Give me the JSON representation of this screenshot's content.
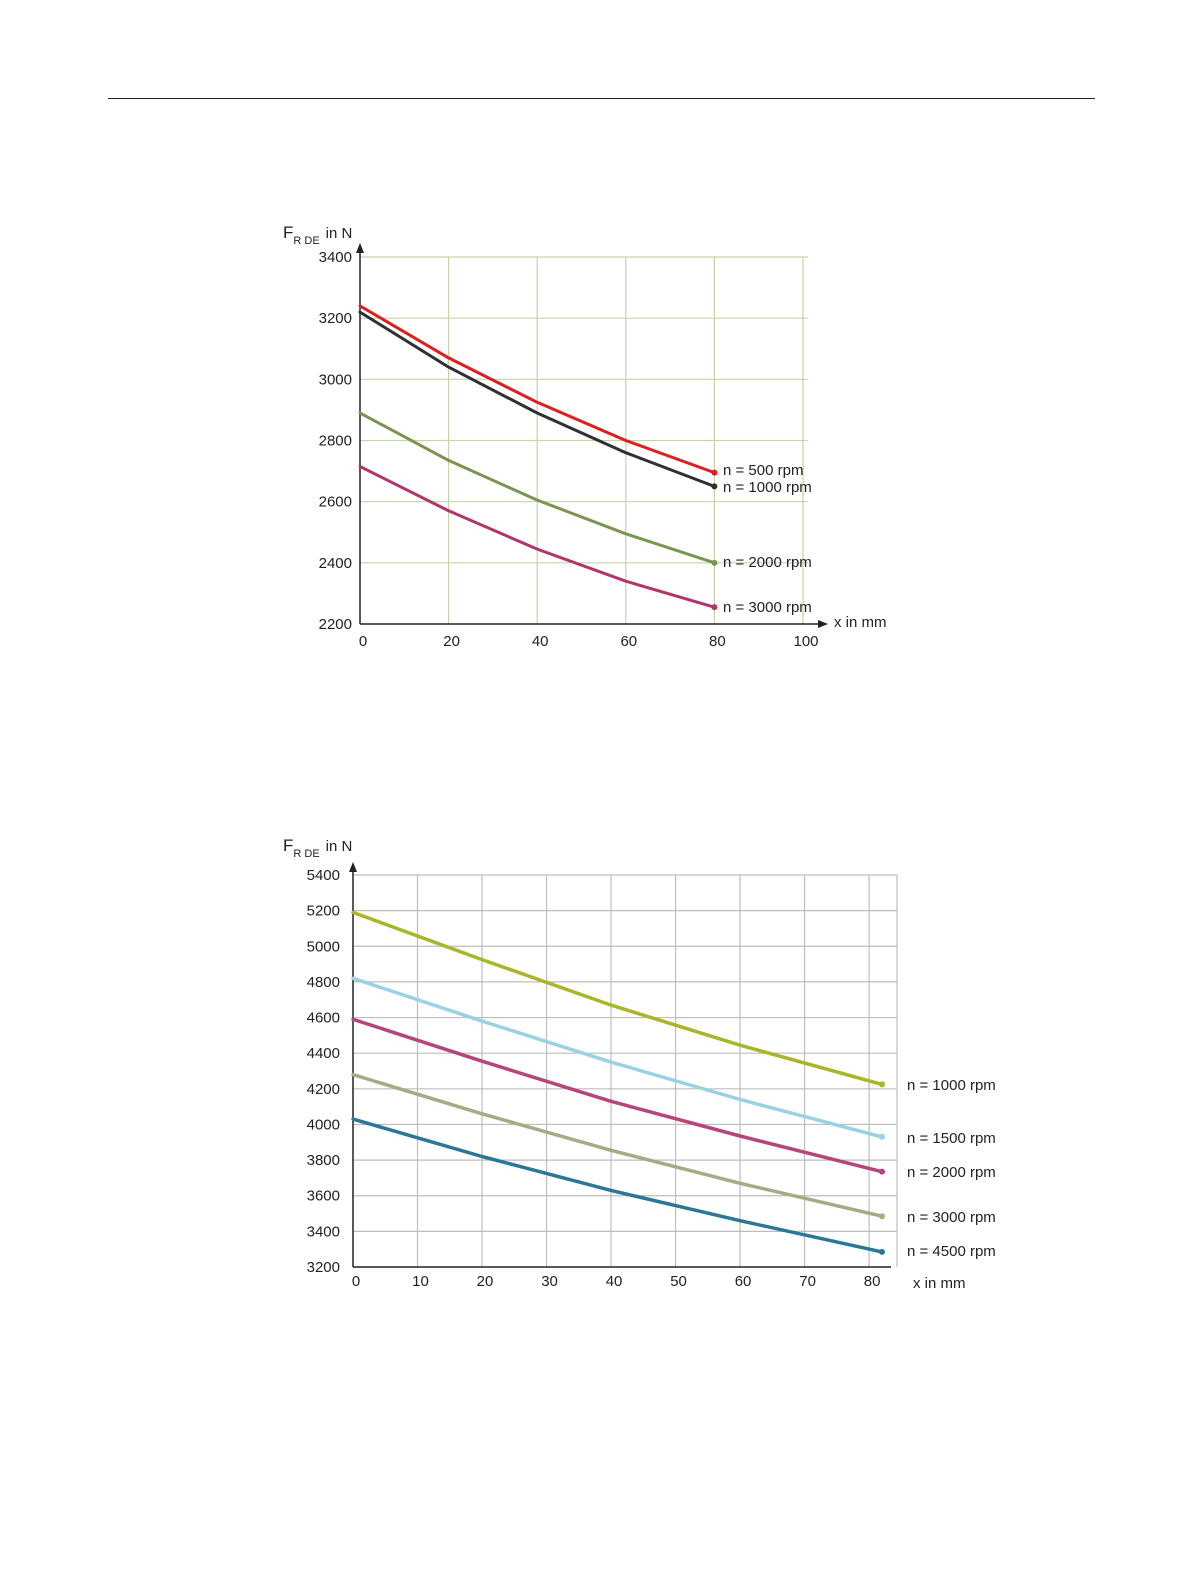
{
  "chart_data": [
    {
      "type": "line",
      "ylabel_main": "F",
      "ylabel_sub": "R DE",
      "ylabel_suffix": "in N",
      "xlabel": "x in mm",
      "xlim": [
        0,
        100
      ],
      "ylim": [
        2200,
        3400
      ],
      "xticks": [
        0,
        20,
        40,
        60,
        80,
        100
      ],
      "yticks": [
        2200,
        2400,
        2600,
        2800,
        3000,
        3200,
        3400
      ],
      "grid": true,
      "grid_color": "#c7d3a8",
      "legend_placement": "right of line ends",
      "series": [
        {
          "name": "n = 500 rpm",
          "color": "#e01e1e",
          "x": [
            0,
            20,
            40,
            60,
            80
          ],
          "y": [
            3240,
            3070,
            2925,
            2800,
            2695
          ]
        },
        {
          "name": "n = 1000 rpm",
          "color": "#2f2f35",
          "x": [
            0,
            20,
            40,
            60,
            80
          ],
          "y": [
            3220,
            3040,
            2890,
            2760,
            2650
          ]
        },
        {
          "name": "n = 2000 rpm",
          "color": "#7b9450",
          "x": [
            0,
            20,
            40,
            60,
            80
          ],
          "y": [
            2890,
            2735,
            2605,
            2495,
            2400
          ]
        },
        {
          "name": "n = 3000 rpm",
          "color": "#b2346b",
          "x": [
            0,
            20,
            40,
            60,
            80
          ],
          "y": [
            2715,
            2570,
            2445,
            2340,
            2255
          ]
        }
      ]
    },
    {
      "type": "line",
      "ylabel_main": "F",
      "ylabel_sub": "R DE",
      "ylabel_suffix": "in N",
      "xlabel": "x in mm",
      "xlim": [
        0,
        82
      ],
      "ylim": [
        3200,
        5400
      ],
      "xticks": [
        0,
        10,
        20,
        30,
        40,
        50,
        60,
        70,
        80
      ],
      "yticks": [
        3200,
        3400,
        3600,
        3800,
        4000,
        4200,
        4400,
        4600,
        4800,
        5000,
        5200,
        5400
      ],
      "grid": true,
      "grid_color": "#bdbdbd",
      "legend_placement": "right of line ends",
      "series": [
        {
          "name": "n = 1000 rpm",
          "color": "#a9b62a",
          "x": [
            0,
            20,
            40,
            60,
            82
          ],
          "y": [
            5190,
            4925,
            4670,
            4445,
            4225
          ]
        },
        {
          "name": "n = 1500 rpm",
          "color": "#97d3e3",
          "x": [
            0,
            20,
            40,
            60,
            82
          ],
          "y": [
            4820,
            4580,
            4350,
            4140,
            3930
          ]
        },
        {
          "name": "n = 2000 rpm",
          "color": "#b8457a",
          "x": [
            0,
            20,
            40,
            60,
            82
          ],
          "y": [
            4590,
            4355,
            4130,
            3935,
            3735
          ]
        },
        {
          "name": "n = 3000 rpm",
          "color": "#a3ad84",
          "x": [
            0,
            20,
            40,
            60,
            82
          ],
          "y": [
            4280,
            4060,
            3855,
            3670,
            3485
          ]
        },
        {
          "name": "n = 4500 rpm",
          "color": "#2b7796",
          "x": [
            0,
            20,
            40,
            60,
            82
          ],
          "y": [
            4030,
            3820,
            3630,
            3460,
            3285
          ]
        }
      ]
    }
  ]
}
